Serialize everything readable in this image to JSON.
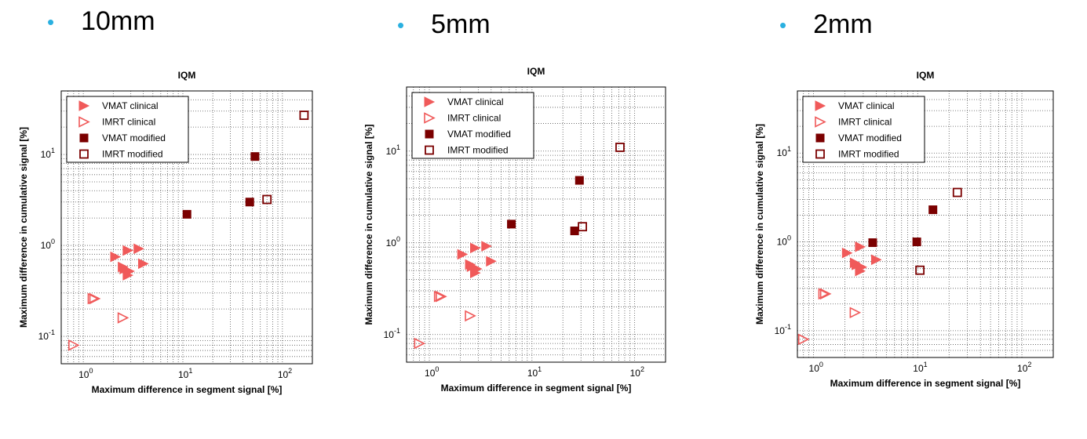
{
  "headings": [
    "10mm",
    "5mm",
    "2mm"
  ],
  "series_style": {
    "VMAT clinical": {
      "marker": "triangle-right",
      "filled": true,
      "color": "#f05a5a"
    },
    "IMRT clinical": {
      "marker": "triangle-right",
      "filled": false,
      "color": "#f05a5a"
    },
    "VMAT modified": {
      "marker": "square",
      "filled": true,
      "color": "#7b0000"
    },
    "IMRT modified": {
      "marker": "square",
      "filled": false,
      "color": "#7b0000"
    }
  },
  "chart_data": [
    {
      "type": "scatter",
      "title": "IQM",
      "xlabel": "Maximum difference in segment signal [%]",
      "ylabel": "Maximum difference in cumulative signal [%]",
      "xscale": "log",
      "yscale": "log",
      "xlim": [
        0.6,
        200
      ],
      "ylim": [
        0.05,
        50
      ],
      "x_ticks": [
        "10^0",
        "10^1",
        "10^2"
      ],
      "y_ticks": [
        "10^-1",
        "10^0",
        "10^1"
      ],
      "grid": true,
      "legend_position": "top-left",
      "series": [
        {
          "name": "VMAT clinical",
          "points": [
            [
              2.1,
              0.75
            ],
            [
              2.8,
              0.88
            ],
            [
              3.6,
              0.92
            ],
            [
              2.6,
              0.55
            ],
            [
              2.9,
              0.52
            ],
            [
              2.8,
              0.47
            ],
            [
              4.0,
              0.63
            ],
            [
              2.5,
              0.58
            ]
          ]
        },
        {
          "name": "IMRT clinical",
          "points": [
            [
              1.3,
              0.26
            ],
            [
              0.8,
              0.08
            ],
            [
              2.5,
              0.16
            ],
            [
              1.25,
              0.26
            ]
          ]
        },
        {
          "name": "VMAT modified",
          "points": [
            [
              11,
              2.2
            ],
            [
              47,
              3.0
            ],
            [
              53,
              9.5
            ]
          ]
        },
        {
          "name": "IMRT modified",
          "points": [
            [
              70,
              3.2
            ],
            [
              165,
              27
            ]
          ]
        }
      ]
    },
    {
      "type": "scatter",
      "title": "IQM",
      "xlabel": "Maximum difference in segment signal [%]",
      "ylabel": "Maximum difference in cumulative signal [%]",
      "xscale": "log",
      "yscale": "log",
      "xlim": [
        0.6,
        200
      ],
      "ylim": [
        0.05,
        50
      ],
      "x_ticks": [
        "10^0",
        "10^1",
        "10^2"
      ],
      "y_ticks": [
        "10^-1",
        "10^0",
        "10^1"
      ],
      "grid": true,
      "legend_position": "top-left",
      "series": [
        {
          "name": "VMAT clinical",
          "points": [
            [
              2.1,
              0.75
            ],
            [
              2.8,
              0.88
            ],
            [
              3.6,
              0.92
            ],
            [
              2.6,
              0.55
            ],
            [
              2.9,
              0.52
            ],
            [
              2.8,
              0.47
            ],
            [
              4.0,
              0.63
            ],
            [
              2.5,
              0.58
            ]
          ]
        },
        {
          "name": "IMRT clinical",
          "points": [
            [
              1.3,
              0.26
            ],
            [
              0.8,
              0.08
            ],
            [
              2.5,
              0.16
            ],
            [
              1.25,
              0.26
            ]
          ]
        },
        {
          "name": "VMAT modified",
          "points": [
            [
              6.3,
              1.6
            ],
            [
              26,
              1.35
            ],
            [
              29,
              4.8
            ]
          ]
        },
        {
          "name": "IMRT modified",
          "points": [
            [
              31,
              1.5
            ],
            [
              72,
              11
            ]
          ]
        }
      ]
    },
    {
      "type": "scatter",
      "title": "IQM",
      "xlabel": "Maximum difference in segment signal [%]",
      "ylabel": "Maximum difference in cumulative signal [%]",
      "xscale": "log",
      "yscale": "log",
      "xlim": [
        0.7,
        200
      ],
      "ylim": [
        0.05,
        50
      ],
      "x_ticks": [
        "10^0",
        "10^1",
        "10^2"
      ],
      "y_ticks": [
        "10^-1",
        "10^0",
        "10^1"
      ],
      "grid": true,
      "legend_position": "top-left",
      "series": [
        {
          "name": "VMAT clinical",
          "points": [
            [
              2.1,
              0.75
            ],
            [
              2.8,
              0.88
            ],
            [
              2.6,
              0.55
            ],
            [
              2.9,
              0.52
            ],
            [
              2.8,
              0.47
            ],
            [
              4.0,
              0.63
            ],
            [
              2.5,
              0.58
            ]
          ]
        },
        {
          "name": "IMRT clinical",
          "points": [
            [
              1.3,
              0.26
            ],
            [
              0.8,
              0.08
            ],
            [
              2.5,
              0.16
            ],
            [
              1.25,
              0.26
            ]
          ]
        },
        {
          "name": "VMAT modified",
          "points": [
            [
              3.7,
              0.98
            ],
            [
              9.8,
              1.0
            ],
            [
              14,
              2.3
            ]
          ]
        },
        {
          "name": "IMRT modified",
          "points": [
            [
              10.5,
              0.48
            ],
            [
              24,
              3.6
            ]
          ]
        }
      ]
    }
  ]
}
